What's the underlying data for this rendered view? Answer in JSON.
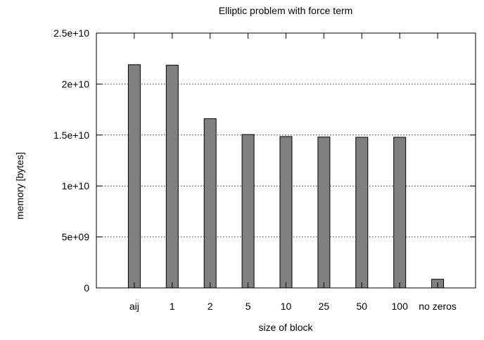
{
  "chart_data": {
    "type": "bar",
    "title": "Elliptic problem with force term",
    "xlabel": "size of block",
    "ylabel": "memory [bytes]",
    "categories": [
      "aij",
      "1",
      "2",
      "5",
      "10",
      "25",
      "50",
      "100",
      "no zeros"
    ],
    "values": [
      21900000000,
      21850000000,
      16600000000,
      15050000000,
      14850000000,
      14800000000,
      14780000000,
      14780000000,
      850000000
    ],
    "ylim": [
      0,
      25000000000
    ],
    "yticks": [
      {
        "value": 0,
        "label": "0"
      },
      {
        "value": 5000000000,
        "label": "5e+09"
      },
      {
        "value": 10000000000,
        "label": "1e+10"
      },
      {
        "value": 15000000000,
        "label": "1.5e+10"
      },
      {
        "value": 20000000000,
        "label": "2e+10"
      },
      {
        "value": 25000000000,
        "label": "2.5e+10"
      }
    ],
    "grid": true,
    "bar_color": "#808080"
  }
}
